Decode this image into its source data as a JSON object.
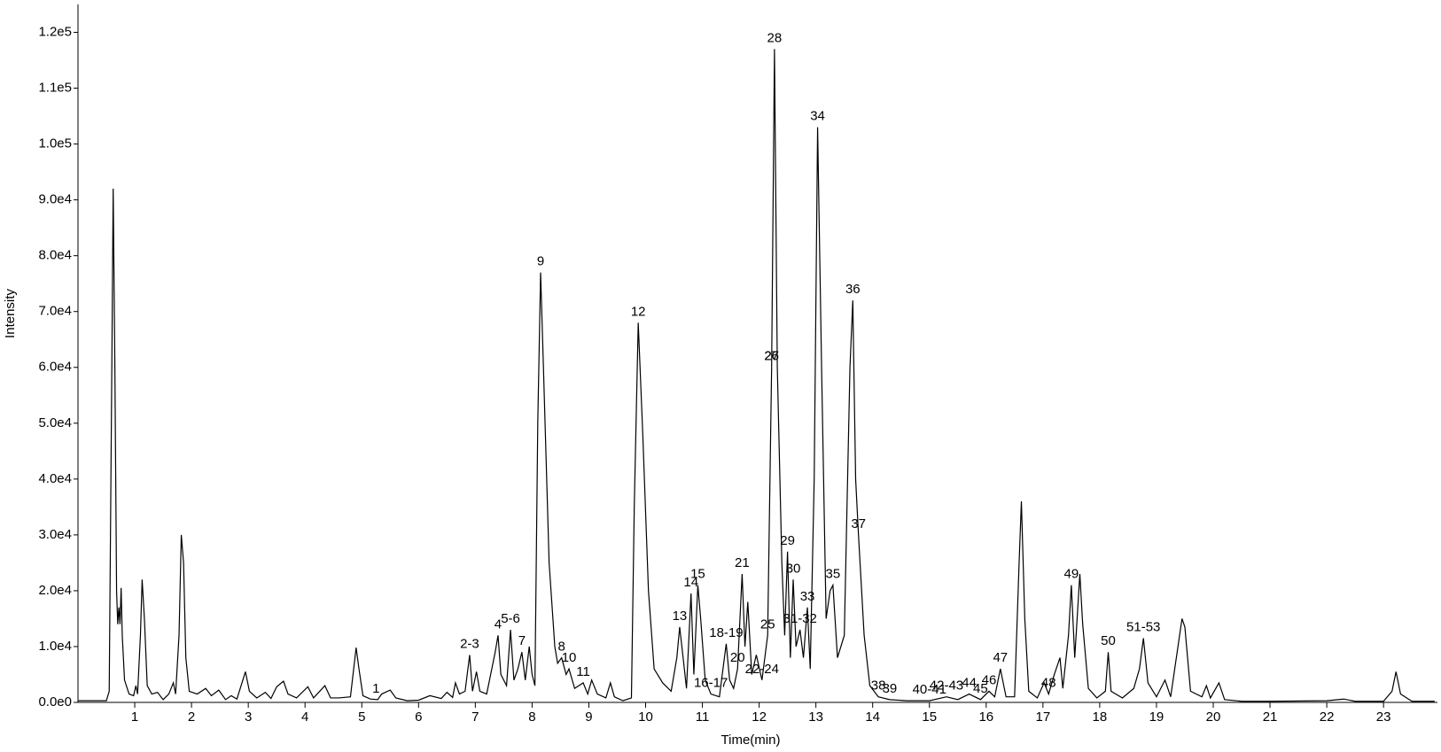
{
  "chart_data": {
    "type": "line",
    "x_label": "Time(min)",
    "y_label": "Intensity",
    "color": "#000000",
    "xlim": [
      0,
      23.95
    ],
    "ylim": [
      0,
      125000
    ],
    "xticks": [
      1,
      2,
      3,
      4,
      5,
      6,
      7,
      8,
      9,
      10,
      11,
      12,
      13,
      14,
      15,
      16,
      17,
      18,
      19,
      20,
      21,
      22,
      23
    ],
    "yticks": [
      {
        "value": 0,
        "label": "0.0e0"
      },
      {
        "value": 10000,
        "label": "1.0e4"
      },
      {
        "value": 20000,
        "label": "2.0e4"
      },
      {
        "value": 30000,
        "label": "3.0e4"
      },
      {
        "value": 40000,
        "label": "4.0e4"
      },
      {
        "value": 50000,
        "label": "5.0e4"
      },
      {
        "value": 60000,
        "label": "6.0e4"
      },
      {
        "value": 70000,
        "label": "7.0e4"
      },
      {
        "value": 80000,
        "label": "8.0e4"
      },
      {
        "value": 90000,
        "label": "9.0e4"
      },
      {
        "value": 100000,
        "label": "1.0e5"
      },
      {
        "value": 110000,
        "label": "1.1e5"
      },
      {
        "value": 120000,
        "label": "1.2e5"
      }
    ],
    "x": [
      0.0,
      0.5,
      0.55,
      0.6,
      0.62,
      0.65,
      0.68,
      0.7,
      0.72,
      0.74,
      0.76,
      0.78,
      0.82,
      0.9,
      0.98,
      1.02,
      1.05,
      1.1,
      1.13,
      1.17,
      1.22,
      1.3,
      1.4,
      1.5,
      1.6,
      1.68,
      1.72,
      1.78,
      1.82,
      1.86,
      1.9,
      1.96,
      2.1,
      2.25,
      2.35,
      2.48,
      2.6,
      2.7,
      2.8,
      2.95,
      3.02,
      3.15,
      3.3,
      3.4,
      3.5,
      3.62,
      3.7,
      3.85,
      4.05,
      4.15,
      4.35,
      4.45,
      4.6,
      4.8,
      4.9,
      4.95,
      5.02,
      5.15,
      5.28,
      5.35,
      5.5,
      5.6,
      5.8,
      6.0,
      6.2,
      6.4,
      6.5,
      6.6,
      6.65,
      6.72,
      6.82,
      6.9,
      6.95,
      7.02,
      7.08,
      7.2,
      7.35,
      7.4,
      7.45,
      7.55,
      7.62,
      7.68,
      7.75,
      7.82,
      7.88,
      7.95,
      8.0,
      8.05,
      8.1,
      8.15,
      8.2,
      8.3,
      8.4,
      8.45,
      8.52,
      8.6,
      8.65,
      8.75,
      8.9,
      8.98,
      9.05,
      9.15,
      9.3,
      9.38,
      9.45,
      9.6,
      9.75,
      9.8,
      9.87,
      9.95,
      10.05,
      10.15,
      10.3,
      10.45,
      10.55,
      10.6,
      10.65,
      10.72,
      10.8,
      10.85,
      10.92,
      10.97,
      11.05,
      11.15,
      11.3,
      11.42,
      11.48,
      11.55,
      11.62,
      11.7,
      11.75,
      11.8,
      11.87,
      11.95,
      12.05,
      12.15,
      12.22,
      12.27,
      12.32,
      12.4,
      12.45,
      12.5,
      12.55,
      12.6,
      12.65,
      12.72,
      12.78,
      12.85,
      12.9,
      12.97,
      13.03,
      13.1,
      13.18,
      13.25,
      13.3,
      13.38,
      13.5,
      13.6,
      13.65,
      13.7,
      13.75,
      13.85,
      13.95,
      14.1,
      14.3,
      14.6,
      15.0,
      15.3,
      15.5,
      15.7,
      15.9,
      16.05,
      16.15,
      16.25,
      16.35,
      16.5,
      16.58,
      16.62,
      16.68,
      16.75,
      16.9,
      17.02,
      17.1,
      17.2,
      17.3,
      17.35,
      17.45,
      17.5,
      17.56,
      17.65,
      17.7,
      17.8,
      17.95,
      18.1,
      18.15,
      18.2,
      18.4,
      18.6,
      18.7,
      18.77,
      18.85,
      19.0,
      19.15,
      19.25,
      19.45,
      19.5,
      19.6,
      19.8,
      19.88,
      19.95,
      20.1,
      20.2,
      20.5,
      21.0,
      22.0,
      22.3,
      22.5,
      23.0,
      23.15,
      23.22,
      23.3,
      23.5,
      23.9
    ],
    "values": [
      300,
      300,
      2000,
      65000,
      92000,
      60000,
      20000,
      14000,
      17000,
      14000,
      20500,
      12000,
      4000,
      1500,
      1200,
      3000,
      1500,
      12000,
      22000,
      15000,
      3000,
      1500,
      1800,
      500,
      1500,
      3500,
      1500,
      12000,
      30000,
      25000,
      8000,
      2000,
      1500,
      2500,
      1200,
      2200,
      500,
      1200,
      600,
      5500,
      2000,
      800,
      1800,
      700,
      2800,
      3800,
      1500,
      800,
      2800,
      800,
      3000,
      800,
      800,
      1000,
      9800,
      6000,
      1200,
      600,
      500,
      1500,
      2200,
      800,
      300,
      400,
      1200,
      700,
      1800,
      900,
      3500,
      1500,
      2000,
      8500,
      2000,
      5500,
      2000,
      1500,
      9000,
      12000,
      5000,
      3000,
      13000,
      4000,
      6000,
      9000,
      4000,
      10000,
      5000,
      3000,
      50000,
      77000,
      60000,
      25000,
      10000,
      7000,
      8000,
      5000,
      6000,
      2500,
      3500,
      1500,
      4000,
      1500,
      800,
      3500,
      1000,
      300,
      800,
      35000,
      68000,
      48000,
      20000,
      6000,
      3500,
      2000,
      8000,
      13500,
      9000,
      2500,
      19500,
      5000,
      21000,
      15000,
      4000,
      1500,
      1000,
      10500,
      4000,
      2500,
      6000,
      23000,
      10000,
      18000,
      5000,
      8500,
      4000,
      12000,
      60000,
      117000,
      60000,
      25000,
      12000,
      27000,
      8000,
      22000,
      10000,
      13000,
      8000,
      17000,
      6000,
      40000,
      103000,
      60000,
      15000,
      20000,
      21000,
      8000,
      12000,
      60000,
      72000,
      40000,
      30000,
      12000,
      3000,
      1000,
      500,
      300,
      300,
      1000,
      500,
      1500,
      500,
      2000,
      1000,
      6000,
      1000,
      1000,
      25000,
      36000,
      15000,
      2000,
      800,
      3500,
      1500,
      5000,
      8000,
      2500,
      12000,
      21000,
      8000,
      23000,
      14000,
      2500,
      800,
      2000,
      9000,
      2000,
      800,
      2500,
      6000,
      11500,
      3500,
      1000,
      4000,
      1000,
      15000,
      13500,
      2000,
      1000,
      3000,
      800,
      3500,
      500,
      200,
      200,
      300,
      600,
      200,
      200,
      2000,
      5500,
      1500,
      200,
      200
    ],
    "annotations": [
      {
        "text": "1",
        "x": 5.25
      },
      {
        "text": "2-3",
        "x": 6.9
      },
      {
        "text": "4",
        "x": 7.4
      },
      {
        "text": "5-6",
        "x": 7.62
      },
      {
        "text": "7",
        "x": 7.82
      },
      {
        "text": "8",
        "x": 8.52
      },
      {
        "text": "9",
        "x": 8.15
      },
      {
        "text": "10",
        "x": 8.65
      },
      {
        "text": "11",
        "x": 8.9
      },
      {
        "text": "12",
        "x": 9.87
      },
      {
        "text": "13",
        "x": 10.6
      },
      {
        "text": "14",
        "x": 10.8
      },
      {
        "text": "15",
        "x": 10.92
      },
      {
        "text": "16-17",
        "x": 11.15
      },
      {
        "text": "18-19",
        "x": 11.42
      },
      {
        "text": "20",
        "x": 11.62
      },
      {
        "text": "21",
        "x": 11.7
      },
      {
        "text": "22-24",
        "x": 12.05
      },
      {
        "text": "25",
        "x": 12.15
      },
      {
        "text": "26",
        "x": 12.22
      },
      {
        "text": "27",
        "x": 12.22
      },
      {
        "text": "28",
        "x": 12.27
      },
      {
        "text": "29",
        "x": 12.5
      },
      {
        "text": "30",
        "x": 12.6
      },
      {
        "text": "31-32",
        "x": 12.72
      },
      {
        "text": "33",
        "x": 12.85
      },
      {
        "text": "34",
        "x": 13.03
      },
      {
        "text": "35",
        "x": 13.3
      },
      {
        "text": "36",
        "x": 13.65
      },
      {
        "text": "37",
        "x": 13.75
      },
      {
        "text": "38",
        "x": 14.1
      },
      {
        "text": "39",
        "x": 14.3
      },
      {
        "text": "40-41",
        "x": 15.0
      },
      {
        "text": "42-43",
        "x": 15.3
      },
      {
        "text": "44",
        "x": 15.7
      },
      {
        "text": "45",
        "x": 15.9
      },
      {
        "text": "46",
        "x": 16.05
      },
      {
        "text": "47",
        "x": 16.25
      },
      {
        "text": "48",
        "x": 17.1
      },
      {
        "text": "49",
        "x": 17.5
      },
      {
        "text": "50",
        "x": 18.15
      },
      {
        "text": "51-53",
        "x": 18.77
      }
    ]
  }
}
